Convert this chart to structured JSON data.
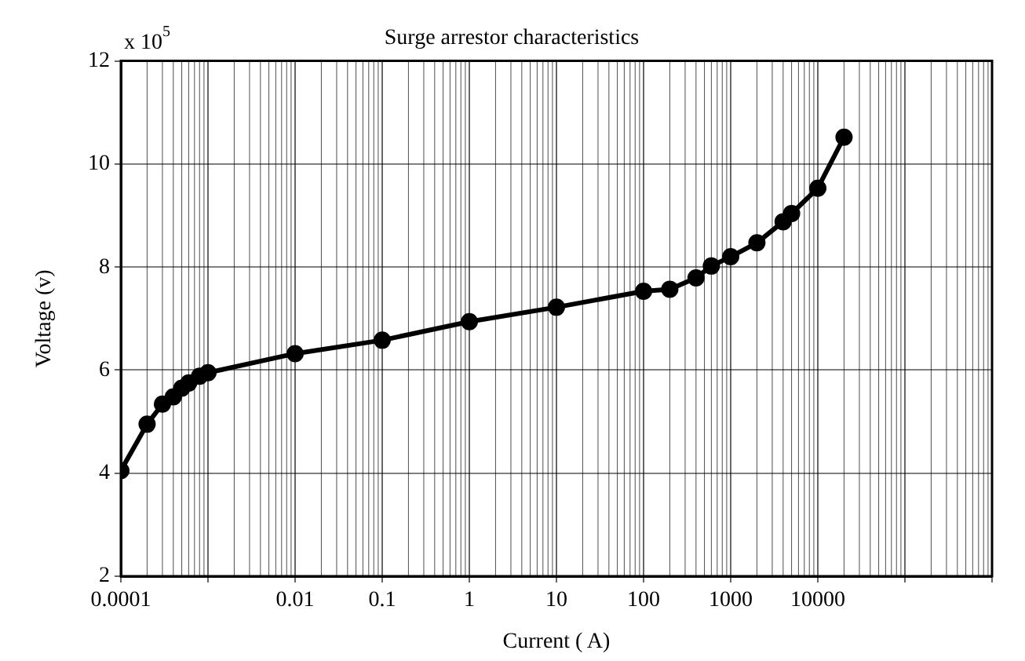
{
  "chart_data": {
    "type": "line",
    "title": "Surge arrestor characteristics",
    "xlabel": "Current ( A)",
    "ylabel": "Voltage (v)",
    "annotations": [
      "x 10$^{5}$"
    ],
    "x": [
      0.0001,
      0.0002,
      0.0003,
      0.0004,
      0.0005,
      0.0006,
      0.0008,
      0.001,
      0.01,
      0.1,
      1,
      10,
      100,
      200,
      400,
      600,
      1000,
      2000,
      4000,
      5000,
      10000,
      20000
    ],
    "series": [
      {
        "color": "#000000",
        "values": [
          4.05,
          4.95,
          5.34,
          5.48,
          5.65,
          5.75,
          5.88,
          5.95,
          6.32,
          6.58,
          6.94,
          7.22,
          7.53,
          7.57,
          7.79,
          8.02,
          8.2,
          8.47,
          8.88,
          9.04,
          9.53,
          10.52
        ]
      }
    ],
    "log": "x",
    "xlim": [
      0.0001,
      1000000
    ],
    "xticks": [
      0.0001,
      {
        "value": 0.001,
        "label": null
      },
      0.01,
      0.1,
      1,
      10,
      100,
      1000,
      10000,
      {
        "value": 100000,
        "label": null
      },
      {
        "value": 1000000,
        "label": null
      }
    ],
    "ylim": [
      2,
      12
    ],
    "yticks": [
      2,
      4,
      6,
      8,
      10,
      12
    ],
    "grid": true,
    "legend": false,
    "marker": "circle",
    "line_style": "solid"
  }
}
